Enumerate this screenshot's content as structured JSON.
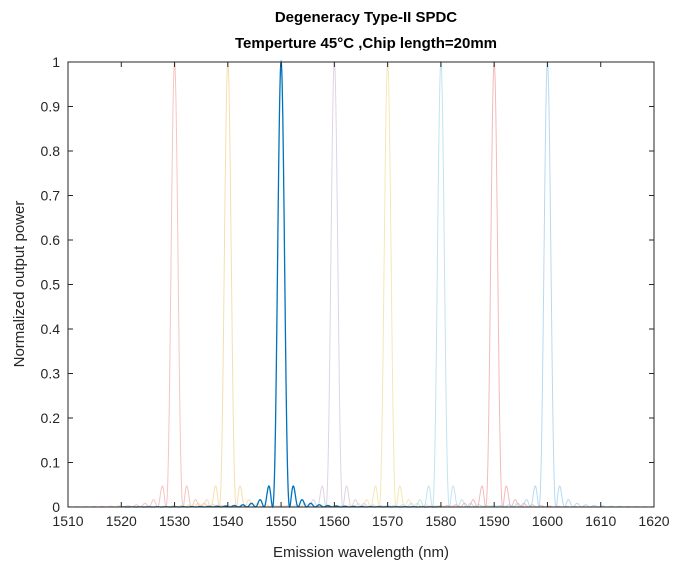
{
  "chart_data": {
    "type": "line",
    "title": "Degeneracy Type-II SPDC",
    "subtitle": "Temperture 45°C ,Chip length=20mm",
    "xlabel": "Emission wavelength (nm)",
    "ylabel": "Normalized output power",
    "xlim": [
      1510,
      1620
    ],
    "ylim": [
      0,
      1
    ],
    "xticks": [
      "1510",
      "1520",
      "1530",
      "1540",
      "1550",
      "1560",
      "1570",
      "1580",
      "1590",
      "1600",
      "1610",
      "1620"
    ],
    "yticks": [
      "0",
      "0.1",
      "0.2",
      "0.3",
      "0.4",
      "0.5",
      "0.6",
      "0.7",
      "0.8",
      "0.9",
      "1"
    ],
    "grid": false,
    "legend": "none",
    "function": "sinc squared",
    "sinc_zero_spacing_nm": 1.6,
    "curve_range_nm": 30,
    "series": [
      {
        "peak_nm": 1530,
        "peak_value": 1,
        "color": "#f3b6b1",
        "opacity": 0.8
      },
      {
        "peak_nm": 1540,
        "peak_value": 1,
        "color": "#f5d9a0",
        "opacity": 0.85
      },
      {
        "peak_nm": 1550,
        "peak_value": 1,
        "color": "#0072bd",
        "opacity": 1
      },
      {
        "peak_nm": 1560,
        "peak_value": 1,
        "color": "#d9cbe2",
        "opacity": 0.85
      },
      {
        "peak_nm": 1570,
        "peak_value": 1,
        "color": "#f3e3a8",
        "opacity": 0.85
      },
      {
        "peak_nm": 1580,
        "peak_value": 1,
        "color": "#b9def0",
        "opacity": 0.85
      },
      {
        "peak_nm": 1590,
        "peak_value": 1,
        "color": "#f2a7a7",
        "opacity": 0.8
      },
      {
        "peak_nm": 1600,
        "peak_value": 1,
        "color": "#a9d4ee",
        "opacity": 0.85
      }
    ]
  }
}
